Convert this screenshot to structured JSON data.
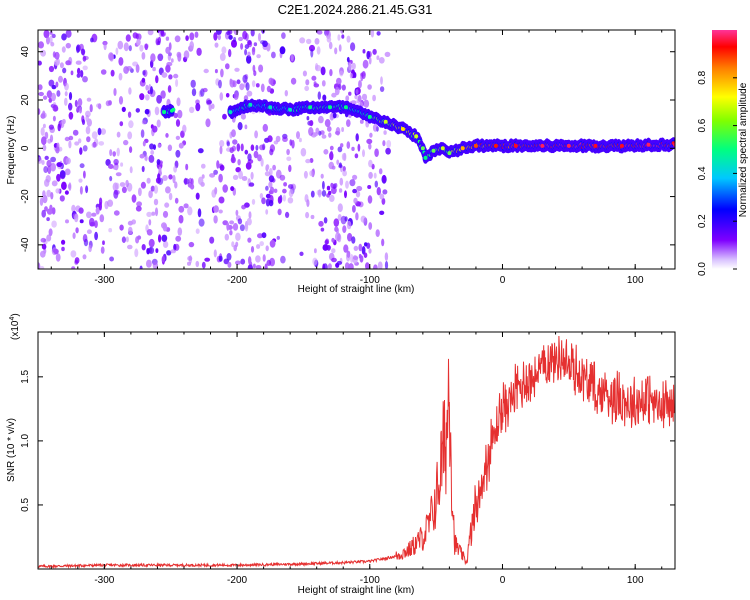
{
  "figure": {
    "title": "C2E1.2024.286.21.45.G31"
  },
  "colors": {
    "snr_line": "#e53030",
    "frame": "#000000",
    "noise_speckle": "#7a1fe0",
    "signal_core": "#ff2a2a"
  },
  "chart_data": [
    {
      "type": "heatmap",
      "xlabel": "Height of straight line (km)",
      "ylabel": "Frequency (Hz)",
      "xlim": [
        -350,
        130
      ],
      "ylim": [
        -50,
        49
      ],
      "xticks": [
        -300,
        -200,
        -100,
        0,
        100
      ],
      "yticks": [
        -40,
        -20,
        0,
        20,
        40
      ],
      "colorbar": {
        "label": "Normalized spectral amplitude",
        "range": [
          0,
          1
        ],
        "ticks": [
          "0.0",
          "0.2",
          "0.4",
          "0.6",
          "0.8"
        ],
        "tick_values": [
          0,
          0.2,
          0.4,
          0.6,
          0.8
        ],
        "colormap": [
          "#ffffff",
          "#7f00ff",
          "#0000ff",
          "#00c8ff",
          "#00ff80",
          "#ffff00",
          "#ff7f00",
          "#ff0000",
          "#ff3399"
        ]
      },
      "noise_region_x": [
        -350,
        -85
      ],
      "signal_track": [
        {
          "x": -255,
          "freq": 15,
          "amp": 0.5
        },
        {
          "x": -248,
          "freq": 16,
          "amp": 0.5
        },
        {
          "x": -205,
          "freq": 15,
          "amp": 0.45
        },
        {
          "x": -190,
          "freq": 18,
          "amp": 0.45
        },
        {
          "x": -175,
          "freq": 17,
          "amp": 0.45
        },
        {
          "x": -160,
          "freq": 16,
          "amp": 0.45
        },
        {
          "x": -145,
          "freq": 17,
          "amp": 0.5
        },
        {
          "x": -130,
          "freq": 17,
          "amp": 0.5
        },
        {
          "x": -118,
          "freq": 17,
          "amp": 0.5
        },
        {
          "x": -100,
          "freq": 13,
          "amp": 0.5
        },
        {
          "x": -88,
          "freq": 11,
          "amp": 0.6
        },
        {
          "x": -75,
          "freq": 8,
          "amp": 0.65
        },
        {
          "x": -65,
          "freq": 5,
          "amp": 0.6
        },
        {
          "x": -60,
          "freq": 0,
          "amp": 0.55
        },
        {
          "x": -58,
          "freq": -4,
          "amp": 0.5
        },
        {
          "x": -52,
          "freq": -1,
          "amp": 0.55
        },
        {
          "x": -45,
          "freq": 0,
          "amp": 0.6
        },
        {
          "x": -40,
          "freq": -2,
          "amp": 0.55
        },
        {
          "x": -30,
          "freq": 0,
          "amp": 0.7
        },
        {
          "x": -20,
          "freq": 1,
          "amp": 0.8
        },
        {
          "x": -5,
          "freq": 1,
          "amp": 0.85
        },
        {
          "x": 10,
          "freq": 1,
          "amp": 0.9
        },
        {
          "x": 30,
          "freq": 1,
          "amp": 0.95
        },
        {
          "x": 50,
          "freq": 1,
          "amp": 0.95
        },
        {
          "x": 70,
          "freq": 1,
          "amp": 0.9
        },
        {
          "x": 90,
          "freq": 1,
          "amp": 0.9
        },
        {
          "x": 110,
          "freq": 1.5,
          "amp": 0.95
        },
        {
          "x": 130,
          "freq": 1.5,
          "amp": 0.95
        }
      ]
    },
    {
      "type": "line",
      "xlabel": "Height of straight line (km)",
      "ylabel": "SNR (10 * v/v)",
      "y_multiplier_label": "(x10",
      "y_multiplier_exp": "4",
      "xlim": [
        -350,
        130
      ],
      "ylim": [
        0,
        1.85
      ],
      "xticks": [
        -300,
        -200,
        -100,
        0,
        100
      ],
      "yticks": [
        0.5,
        1.0,
        1.5
      ],
      "ytick_labels": [
        "0.5",
        "1.0",
        "1.5"
      ],
      "series": [
        {
          "x": [
            -350,
            -300,
            -250,
            -200,
            -150,
            -120,
            -100,
            -80,
            -70,
            -60,
            -55,
            -50,
            -45,
            -42,
            -40,
            -38,
            -36,
            -33,
            -30,
            -27,
            -25,
            -20,
            -15,
            -10,
            -5,
            0,
            10,
            20,
            30,
            40,
            45,
            50,
            60,
            70,
            80,
            90,
            100,
            110,
            120,
            130
          ],
          "y": [
            0.02,
            0.03,
            0.03,
            0.03,
            0.04,
            0.05,
            0.06,
            0.1,
            0.15,
            0.25,
            0.35,
            0.55,
            0.9,
            1.05,
            1.6,
            0.6,
            0.2,
            0.15,
            0.1,
            0.05,
            0.2,
            0.5,
            0.75,
            0.95,
            1.15,
            1.3,
            1.45,
            1.55,
            1.62,
            1.72,
            1.7,
            1.65,
            1.55,
            1.45,
            1.42,
            1.38,
            1.35,
            1.4,
            1.3,
            1.35
          ]
        }
      ]
    }
  ]
}
